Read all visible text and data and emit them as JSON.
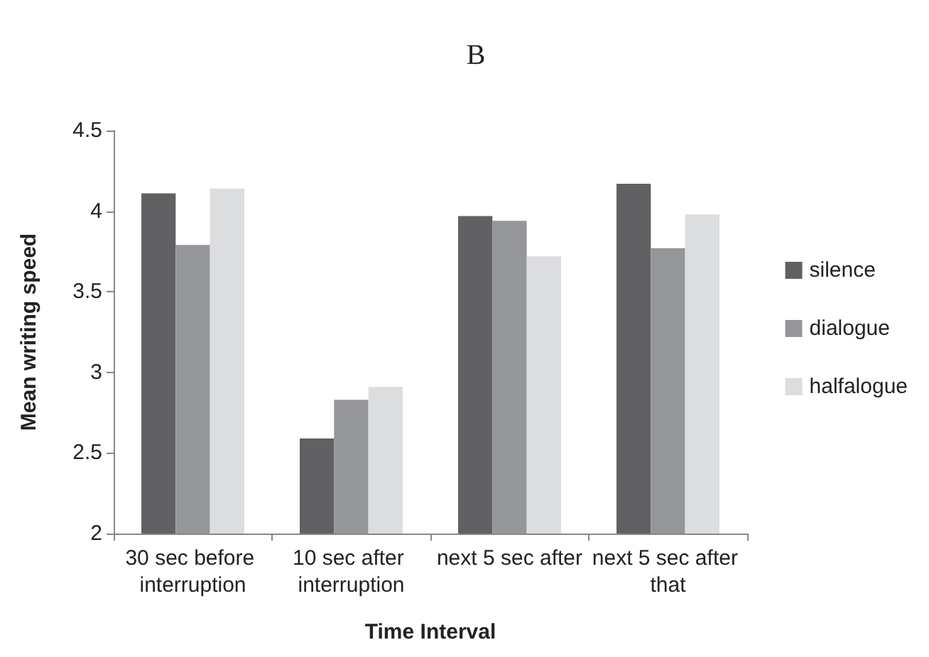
{
  "chart_data": {
    "type": "bar",
    "title": "B",
    "xlabel": "Time Interval",
    "ylabel": "Mean writing speed",
    "categories": [
      "30 sec before interruption",
      "10 sec after interruption",
      "next 5 sec after",
      "next 5 sec after that"
    ],
    "series": [
      {
        "name": "silence",
        "color": "#616163",
        "values": [
          4.11,
          2.59,
          3.97,
          4.17
        ]
      },
      {
        "name": "dialogue",
        "color": "#959699",
        "values": [
          3.79,
          2.83,
          3.94,
          3.77
        ]
      },
      {
        "name": "halfalogue",
        "color": "#dcdddf",
        "values": [
          4.14,
          2.91,
          3.72,
          3.98
        ]
      }
    ],
    "ylim": [
      2,
      4.5
    ],
    "yticks": [
      2,
      2.5,
      3,
      3.5,
      4,
      4.5
    ],
    "grid": false,
    "legend": "right"
  }
}
